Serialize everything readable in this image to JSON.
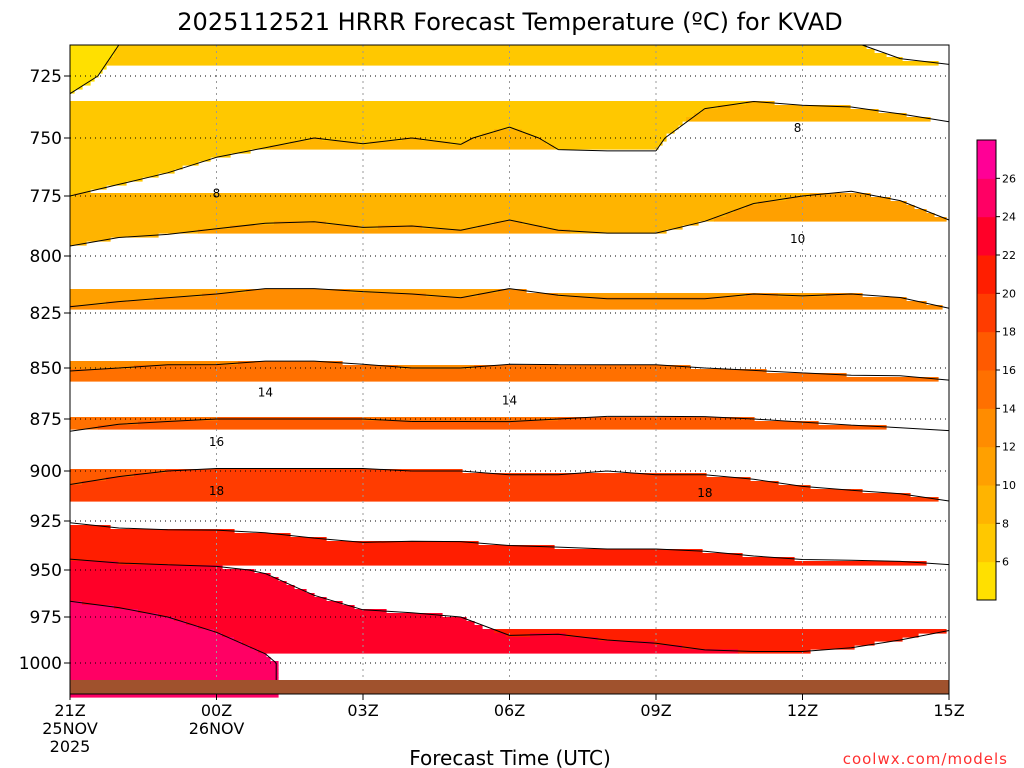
{
  "chart_data": {
    "type": "contour",
    "title": "2025112521 HRRR Forecast Temperature (ºC) for KVAD",
    "xlabel": "Forecast Time (UTC)",
    "ylabel": "",
    "x_tick_labels": [
      {
        "hour": 0,
        "lines": [
          "21Z",
          "25NOV",
          "2025"
        ]
      },
      {
        "hour": 3,
        "lines": [
          "00Z",
          "26NOV"
        ]
      },
      {
        "hour": 6,
        "lines": [
          "03Z"
        ]
      },
      {
        "hour": 9,
        "lines": [
          "06Z"
        ]
      },
      {
        "hour": 12,
        "lines": [
          "09Z"
        ]
      },
      {
        "hour": 15,
        "lines": [
          "12Z"
        ]
      },
      {
        "hour": 18,
        "lines": [
          "15Z"
        ]
      }
    ],
    "xlim": [
      0,
      18
    ],
    "y_ticks": [
      725,
      750,
      775,
      800,
      825,
      850,
      875,
      900,
      925,
      950,
      975,
      1000
    ],
    "ylim_hpa": [
      712,
      1010
    ],
    "levels_hpa": [
      712,
      725,
      750,
      775,
      800,
      825,
      850,
      875,
      900,
      925,
      950,
      975,
      1000,
      1010
    ],
    "times_hr": [
      0,
      1,
      2,
      3,
      4,
      5,
      6,
      7,
      8,
      9,
      10,
      11,
      12,
      13,
      14,
      15,
      16,
      17,
      18
    ],
    "temperature_c": [
      [
        5.2,
        6.0,
        6.4,
        6.5,
        6.4,
        6.3,
        6.4,
        6.6,
        6.3,
        6.3,
        6.3,
        6.2,
        6.0,
        6.2,
        6.3,
        6.4,
        6.2,
        5.3,
        5.0
      ],
      [
        5.6,
        6.3,
        6.5,
        6.5,
        6.5,
        6.4,
        6.5,
        6.7,
        6.5,
        6.6,
        6.6,
        6.5,
        6.6,
        7.0,
        7.3,
        7.2,
        7.1,
        6.9,
        6.6
      ],
      [
        7.0,
        7.2,
        7.4,
        7.6,
        7.8,
        8.0,
        7.9,
        8.0,
        7.9,
        8.3,
        7.8,
        7.8,
        7.8,
        8.9,
        9.0,
        8.9,
        8.9,
        8.7,
        8.5
      ],
      [
        8.0,
        8.2,
        8.4,
        8.8,
        9.0,
        9.1,
        8.9,
        9.0,
        8.8,
        9.2,
        8.8,
        8.7,
        8.7,
        9.2,
        9.8,
        10.0,
        10.1,
        9.9,
        9.4
      ],
      [
        10.4,
        10.8,
        10.9,
        11.0,
        11.2,
        11.2,
        11.0,
        11.0,
        10.9,
        11.2,
        10.9,
        10.8,
        10.8,
        11.1,
        11.4,
        11.3,
        11.4,
        11.2,
        10.9
      ],
      [
        12.2,
        12.3,
        12.4,
        12.5,
        12.6,
        12.6,
        12.6,
        12.5,
        12.4,
        12.6,
        12.5,
        12.4,
        12.4,
        12.3,
        12.3,
        12.3,
        12.3,
        12.3,
        12.1
      ],
      [
        13.9,
        14.0,
        14.1,
        14.1,
        14.2,
        14.2,
        14.1,
        14.0,
        14.0,
        14.1,
        14.1,
        14.1,
        14.1,
        14.0,
        13.9,
        13.8,
        13.7,
        13.7,
        13.5
      ],
      [
        15.6,
        15.8,
        15.9,
        16.0,
        16.0,
        16.0,
        16.0,
        15.9,
        15.9,
        15.9,
        16.0,
        16.1,
        16.1,
        16.1,
        16.0,
        15.9,
        15.8,
        15.7,
        15.6
      ],
      [
        17.3,
        17.8,
        18.0,
        18.1,
        18.1,
        18.1,
        18.1,
        18.0,
        18.0,
        17.9,
        17.9,
        18.0,
        17.9,
        17.9,
        17.8,
        17.6,
        17.5,
        17.5,
        17.4
      ],
      [
        19.9,
        19.6,
        19.5,
        19.5,
        19.4,
        19.3,
        19.3,
        19.3,
        19.2,
        19.2,
        19.2,
        19.2,
        19.2,
        19.2,
        19.0,
        18.9,
        18.8,
        18.6,
        18.4
      ],
      [
        22.6,
        22.4,
        22.3,
        22.2,
        21.9,
        21.3,
        20.9,
        21.0,
        21.1,
        20.8,
        20.7,
        20.6,
        20.6,
        20.5,
        20.4,
        20.3,
        20.3,
        20.3,
        20.2
      ],
      [
        24.7,
        24.4,
        24.0,
        23.6,
        23.2,
        22.6,
        22.2,
        22.1,
        22.0,
        21.6,
        21.7,
        21.6,
        21.6,
        21.5,
        21.4,
        21.4,
        21.6,
        21.5,
        21.5
      ],
      [
        25.6,
        25.4,
        25.2,
        24.8,
        24.2,
        23.3,
        22.9,
        22.8,
        22.7,
        22.6,
        22.5,
        22.4,
        22.3,
        22.2,
        22.2,
        22.2,
        22.2,
        22.5,
        23.2
      ],
      [
        25.6,
        25.4,
        25.2,
        24.8,
        24.2,
        23.3,
        22.9,
        22.8,
        22.7,
        22.6,
        22.5,
        22.4,
        22.3,
        22.2,
        22.2,
        22.2,
        22.2,
        22.5,
        23.2
      ]
    ],
    "contour_interval": 2,
    "contour_labels": [
      {
        "text": "8",
        "hour": 3.0,
        "hpa": 774
      },
      {
        "text": "8",
        "hour": 14.9,
        "hpa": 746
      },
      {
        "text": "10",
        "hour": 14.9,
        "hpa": 793
      },
      {
        "text": "14",
        "hour": 4.0,
        "hpa": 862
      },
      {
        "text": "14",
        "hour": 9.0,
        "hpa": 866
      },
      {
        "text": "16",
        "hour": 3.0,
        "hpa": 886
      },
      {
        "text": "18",
        "hour": 3.0,
        "hpa": 910
      },
      {
        "text": "18",
        "hour": 13.0,
        "hpa": 911
      }
    ],
    "colorbar": {
      "ticks": [
        6,
        8,
        10,
        12,
        14,
        16,
        18,
        20,
        22,
        24,
        26
      ],
      "boundaries": [
        4,
        6,
        8,
        10,
        12,
        14,
        16,
        18,
        20,
        22,
        24,
        26,
        28
      ],
      "colors": [
        "#ffe000",
        "#ffc800",
        "#ffb400",
        "#ffa000",
        "#ff8c00",
        "#ff7000",
        "#ff5a00",
        "#ff3c00",
        "#ff1e00",
        "#ff0028",
        "#ff0064",
        "#ff0096"
      ]
    },
    "surface_color": "#a0522d",
    "grid": "dotted",
    "credit": "coolwx.com/models",
    "credit_color": "#ff3030"
  }
}
